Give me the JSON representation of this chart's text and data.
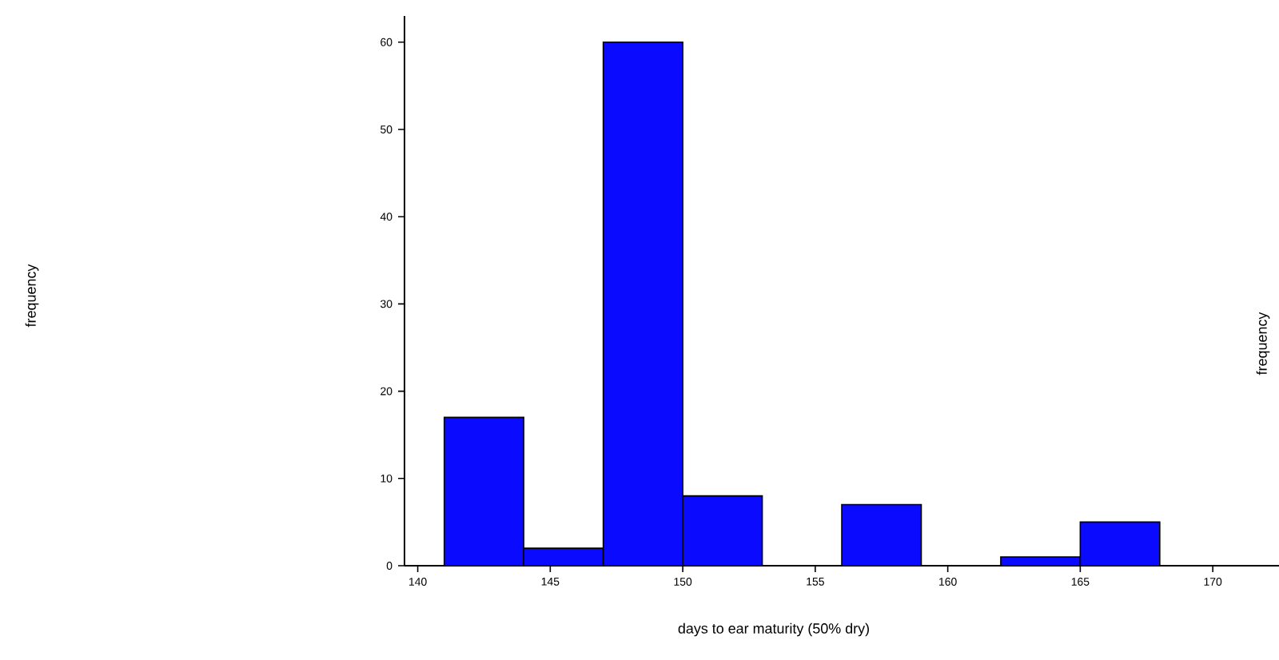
{
  "chart_data": {
    "type": "histogram",
    "xlabel": "days to ear maturity (50% dry)",
    "annotations": [
      "frequency",
      "frequency"
    ],
    "bins": [
      141,
      144,
      147,
      150,
      153,
      156,
      159,
      162,
      165,
      168
    ],
    "values": [
      17,
      2,
      60,
      8,
      0,
      7,
      0,
      1,
      5
    ],
    "color": "#0a0aff",
    "xlim": [
      139.5,
      172.5
    ],
    "ylim": [
      0,
      63
    ],
    "xticks": [
      140,
      145,
      150,
      155,
      160,
      165,
      170
    ],
    "yticks": [
      0,
      10,
      20,
      30,
      40,
      50,
      60
    ],
    "grid": false
  }
}
